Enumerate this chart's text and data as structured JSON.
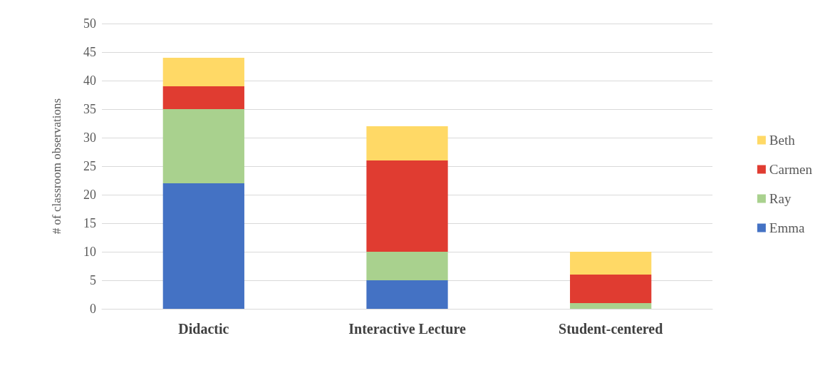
{
  "chart_data": {
    "type": "bar",
    "stacked": true,
    "ylabel": "# of classroom observations",
    "categories": [
      "Didactic",
      "Interactive Lecture",
      "Student-centered"
    ],
    "series": [
      {
        "name": "Emma",
        "color": "#4472c4",
        "values": [
          22,
          5,
          0
        ]
      },
      {
        "name": "Ray",
        "color": "#a9d18e",
        "values": [
          13,
          5,
          1
        ]
      },
      {
        "name": "Carmen",
        "color": "#e03c31",
        "values": [
          4,
          16,
          5
        ]
      },
      {
        "name": "Beth",
        "color": "#ffd966",
        "values": [
          5,
          6,
          4
        ]
      }
    ],
    "ylim": [
      0,
      50
    ],
    "yticks": [
      0,
      5,
      10,
      15,
      20,
      25,
      30,
      35,
      40,
      45,
      50
    ],
    "grid": "y",
    "legend": "right"
  }
}
